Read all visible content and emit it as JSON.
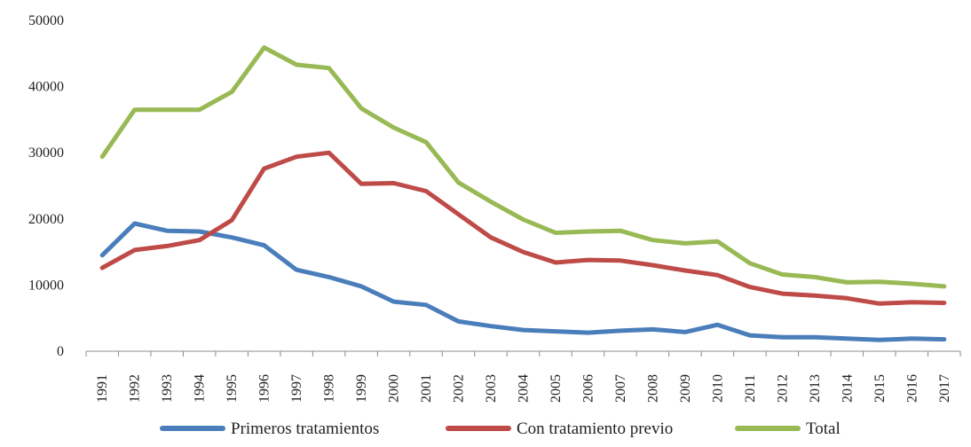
{
  "chart_data": {
    "type": "line",
    "title": "",
    "xlabel": "",
    "ylabel": "",
    "ylim": [
      0,
      50000
    ],
    "yticks": [
      0,
      10000,
      20000,
      30000,
      40000,
      50000
    ],
    "ytick_labels": [
      "0",
      "10000",
      "20000",
      "30000",
      "40000",
      "50000"
    ],
    "grid": false,
    "legend_position": "bottom",
    "categories": [
      "1991",
      "1992",
      "1993",
      "1994",
      "1995",
      "1996",
      "1997",
      "1998",
      "1999",
      "2000",
      "2001",
      "2002",
      "2003",
      "2004",
      "2005",
      "2006",
      "2007",
      "2008",
      "2009",
      "2010",
      "2011",
      "2012",
      "2013",
      "2014",
      "2015",
      "2016",
      "2017"
    ],
    "series": [
      {
        "name": "Primeros tratamientos",
        "color": "#4a7ebb",
        "values": [
          14500,
          19300,
          18200,
          18100,
          17200,
          16000,
          12300,
          11200,
          9800,
          7500,
          7000,
          4500,
          3800,
          3200,
          3000,
          2800,
          3100,
          3300,
          2900,
          4000,
          2400,
          2100,
          2100,
          1900,
          1700,
          1900,
          1800
        ]
      },
      {
        "name": "Con tratamiento previo",
        "color": "#be4b48",
        "values": [
          12600,
          15300,
          15900,
          16800,
          19800,
          27600,
          29400,
          30000,
          25300,
          25400,
          24200,
          20700,
          17200,
          15000,
          13400,
          13800,
          13700,
          13000,
          12200,
          11500,
          9700,
          8700,
          8400,
          8000,
          7200,
          7400,
          7300
        ]
      },
      {
        "name": "Total",
        "color": "#98b954",
        "values": [
          29400,
          36500,
          36500,
          36500,
          39200,
          45900,
          43300,
          42800,
          36700,
          33800,
          31600,
          25500,
          22600,
          19900,
          17900,
          18100,
          18200,
          16800,
          16300,
          16600,
          13300,
          11600,
          11200,
          10400,
          10500,
          10200,
          9800
        ]
      }
    ]
  }
}
